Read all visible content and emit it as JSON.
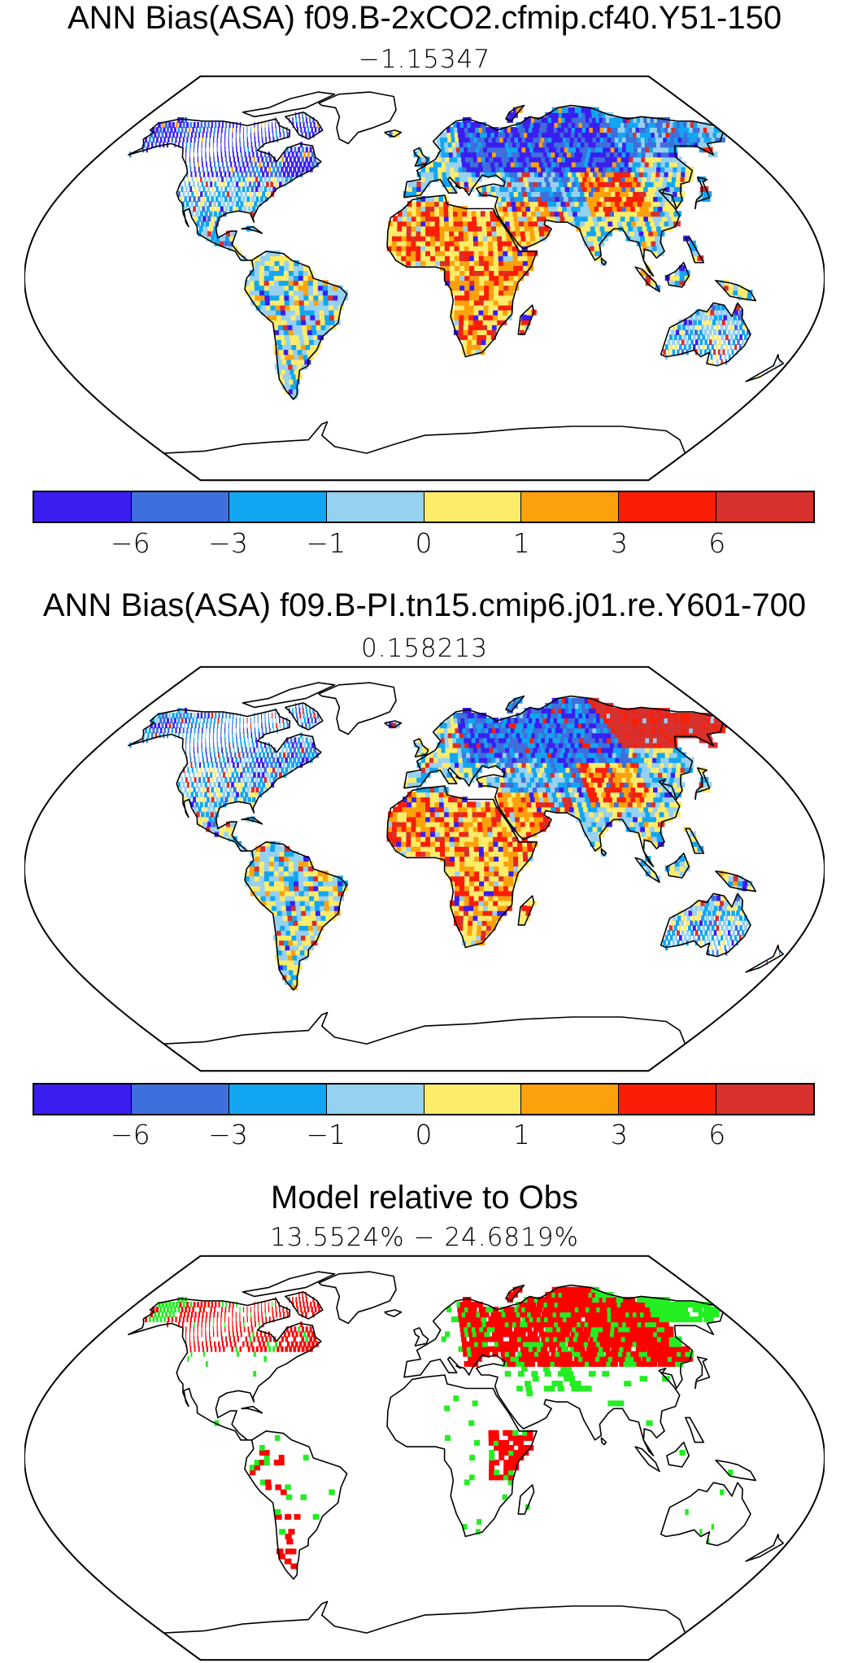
{
  "panels": [
    {
      "title": "ANN Bias(ASA) f09.B-2xCO2.cfmip.cf40.Y51-150",
      "subtitle": "−1.15347"
    },
    {
      "title": "ANN Bias(ASA) f09.B-PI.tn15.cmip6.j01.re.Y601-700",
      "subtitle": "0.158213"
    },
    {
      "title": "Model relative to Obs",
      "subtitle": "13.5524% − 24.6819%"
    }
  ],
  "colorbar": {
    "colors": [
      "#3a1ef0",
      "#3e6fdc",
      "#12a6f2",
      "#96d1f0",
      "#fcec6a",
      "#fca10c",
      "#fa1e08",
      "#d8302c"
    ],
    "tick_labels": [
      "−6",
      "−3",
      "−1",
      "0",
      "1",
      "3",
      "6"
    ]
  },
  "map_colors": {
    "coastline": "#000000",
    "model_better": "#ff0000",
    "model_worse": "#22ee22"
  }
}
